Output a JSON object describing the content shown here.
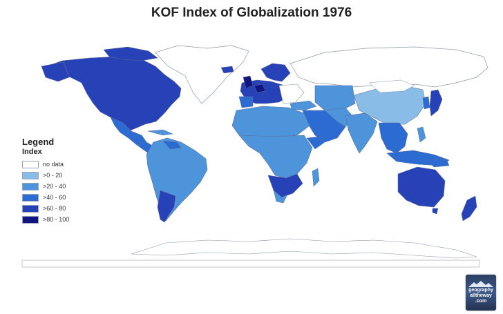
{
  "title": "KOF Index of Globalization 1976",
  "legend": {
    "title": "Legend",
    "subtitle": "Index",
    "items": [
      {
        "label": "no data",
        "color": "#ffffff"
      },
      {
        "label": ">0 - 20",
        "color": "#89bde8"
      },
      {
        "label": ">20 - 40",
        "color": "#4d94db"
      },
      {
        "label": ">40 - 60",
        "color": "#2c6bd1"
      },
      {
        "label": ">60 - 80",
        "color": "#2742b6"
      },
      {
        "label": ">80 - 100",
        "color": "#10157f"
      }
    ]
  },
  "logo": {
    "line1": "geography",
    "line2": "alltheway",
    "line3": ".com"
  }
}
